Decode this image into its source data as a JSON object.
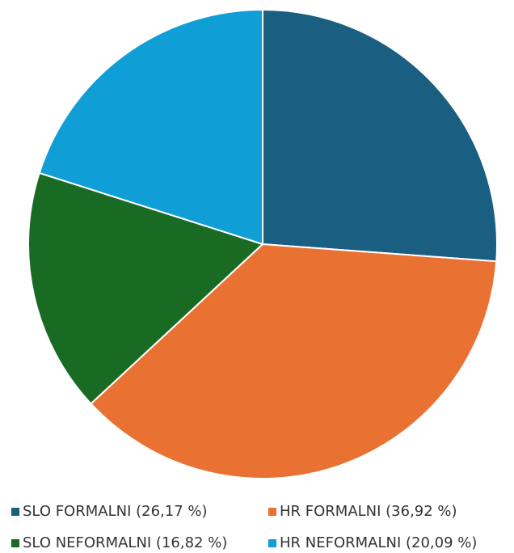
{
  "chart_data": {
    "type": "pie",
    "categories": [
      "SLO FORMALNI (26,17 %)",
      "HR FORMALNI (36,92 %)",
      "SLO NEFORMALNI (16,82 %)",
      "HR NEFORMALNI (20,09 %)"
    ],
    "values": [
      26.17,
      36.92,
      16.82,
      20.09
    ],
    "colors": [
      "#1a5e82",
      "#e97132",
      "#196b24",
      "#0f9ed5"
    ]
  }
}
